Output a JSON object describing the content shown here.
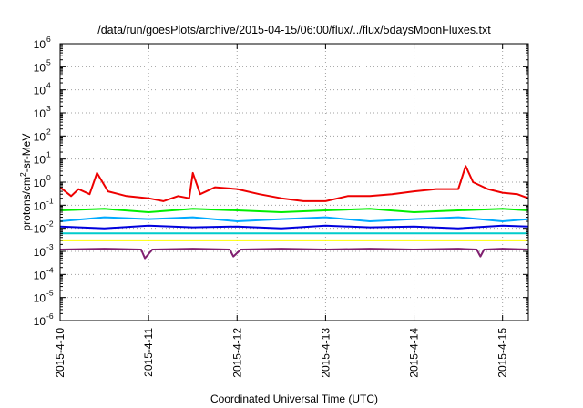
{
  "chart_data": {
    "type": "line",
    "title": "/data/run/goesPlots/archive/2015-04-15/06:00/flux/../flux/5daysMoonFluxes.txt",
    "xlabel": "Coordinated Universal Time (UTC)",
    "ylabel": "protons/cm2-sr-MeV",
    "ylabel_parts": {
      "pre": "protons/cm",
      "sup": "2",
      "post": "-sr-MeV"
    },
    "yscale": "log",
    "ylim": [
      1e-06,
      1000000.0
    ],
    "xlim": [
      "2015-04-10 00:00",
      "2015-04-15 07:00"
    ],
    "grid": true,
    "x_ticks": [
      "2015-4-10",
      "2015-4-11",
      "2015-4-12",
      "2015-4-13",
      "2015-4-14",
      "2015-4-15"
    ],
    "y_ticks": [
      {
        "exp": -6,
        "base": "10",
        "sup": "-6"
      },
      {
        "exp": -5,
        "base": "10",
        "sup": "-5"
      },
      {
        "exp": -4,
        "base": "10",
        "sup": "-4"
      },
      {
        "exp": -3,
        "base": "10",
        "sup": "-3"
      },
      {
        "exp": -2,
        "base": "10",
        "sup": "-2"
      },
      {
        "exp": -1,
        "base": "10",
        "sup": "-1"
      },
      {
        "exp": 0,
        "base": "10",
        "sup": "0"
      },
      {
        "exp": 1,
        "base": "10",
        "sup": "1"
      },
      {
        "exp": 2,
        "base": "10",
        "sup": "2"
      },
      {
        "exp": 3,
        "base": "10",
        "sup": "3"
      },
      {
        "exp": 4,
        "base": "10",
        "sup": "4"
      },
      {
        "exp": 5,
        "base": "10",
        "sup": "5"
      },
      {
        "exp": 6,
        "base": "10",
        "sup": "6"
      }
    ],
    "series": [
      {
        "color": "#ee0000",
        "x": [
          "2015-04-10 00:00",
          "2015-04-10 03:00",
          "2015-04-10 05:00",
          "2015-04-10 08:00",
          "2015-04-10 10:00",
          "2015-04-10 13:00",
          "2015-04-10 18:00",
          "2015-04-11 00:00",
          "2015-04-11 04:00",
          "2015-04-11 08:00",
          "2015-04-11 11:00",
          "2015-04-11 12:00",
          "2015-04-11 14:00",
          "2015-04-11 18:00",
          "2015-04-12 00:00",
          "2015-04-12 06:00",
          "2015-04-12 12:00",
          "2015-04-12 18:00",
          "2015-04-13 00:00",
          "2015-04-13 06:00",
          "2015-04-13 12:00",
          "2015-04-13 18:00",
          "2015-04-14 00:00",
          "2015-04-14 06:00",
          "2015-04-14 12:00",
          "2015-04-14 14:00",
          "2015-04-14 16:00",
          "2015-04-14 20:00",
          "2015-04-15 00:00",
          "2015-04-15 04:00",
          "2015-04-15 07:00"
        ],
        "y": [
          0.6,
          0.25,
          0.5,
          0.3,
          2.5,
          0.4,
          0.25,
          0.2,
          0.15,
          0.25,
          0.2,
          2.5,
          0.3,
          0.6,
          0.5,
          0.3,
          0.2,
          0.15,
          0.15,
          0.25,
          0.25,
          0.3,
          0.4,
          0.5,
          0.5,
          5.0,
          1.0,
          0.5,
          0.35,
          0.3,
          0.2
        ]
      },
      {
        "color": "#00ee00",
        "x": [
          "2015-04-10 00:00",
          "2015-04-10 12:00",
          "2015-04-11 00:00",
          "2015-04-11 12:00",
          "2015-04-12 00:00",
          "2015-04-12 12:00",
          "2015-04-13 00:00",
          "2015-04-13 12:00",
          "2015-04-14 00:00",
          "2015-04-14 12:00",
          "2015-04-15 00:00",
          "2015-04-15 07:00"
        ],
        "y": [
          0.06,
          0.07,
          0.05,
          0.07,
          0.06,
          0.05,
          0.06,
          0.07,
          0.05,
          0.06,
          0.07,
          0.06
        ]
      },
      {
        "color": "#00aaff",
        "x": [
          "2015-04-10 00:00",
          "2015-04-10 12:00",
          "2015-04-11 00:00",
          "2015-04-11 12:00",
          "2015-04-12 00:00",
          "2015-04-12 12:00",
          "2015-04-13 00:00",
          "2015-04-13 12:00",
          "2015-04-14 00:00",
          "2015-04-14 12:00",
          "2015-04-15 00:00",
          "2015-04-15 07:00"
        ],
        "y": [
          0.02,
          0.03,
          0.025,
          0.03,
          0.02,
          0.025,
          0.03,
          0.02,
          0.025,
          0.03,
          0.02,
          0.025
        ]
      },
      {
        "color": "#0000dd",
        "x": [
          "2015-04-10 00:00",
          "2015-04-10 12:00",
          "2015-04-11 00:00",
          "2015-04-11 12:00",
          "2015-04-12 00:00",
          "2015-04-12 12:00",
          "2015-04-13 00:00",
          "2015-04-13 12:00",
          "2015-04-14 00:00",
          "2015-04-14 12:00",
          "2015-04-15 00:00",
          "2015-04-15 07:00"
        ],
        "y": [
          0.012,
          0.01,
          0.013,
          0.011,
          0.012,
          0.01,
          0.013,
          0.011,
          0.012,
          0.01,
          0.013,
          0.012
        ]
      },
      {
        "color": "#00cccc",
        "x": [
          "2015-04-10 00:00",
          "2015-04-11 00:00",
          "2015-04-12 00:00",
          "2015-04-13 00:00",
          "2015-04-14 00:00",
          "2015-04-15 00:00",
          "2015-04-15 07:00"
        ],
        "y": [
          0.006,
          0.006,
          0.006,
          0.006,
          0.006,
          0.006,
          0.006
        ]
      },
      {
        "color": "#ffff00",
        "x": [
          "2015-04-10 00:00",
          "2015-04-11 00:00",
          "2015-04-12 00:00",
          "2015-04-13 00:00",
          "2015-04-14 00:00",
          "2015-04-15 00:00",
          "2015-04-15 07:00"
        ],
        "y": [
          0.003,
          0.003,
          0.003,
          0.003,
          0.003,
          0.003,
          0.003
        ]
      },
      {
        "color": "#802070",
        "x": [
          "2015-04-10 00:00",
          "2015-04-10 12:00",
          "2015-04-10 22:00",
          "2015-04-10 23:00",
          "2015-04-11 01:00",
          "2015-04-11 12:00",
          "2015-04-11 22:00",
          "2015-04-11 23:00",
          "2015-04-12 01:00",
          "2015-04-12 12:00",
          "2015-04-13 00:00",
          "2015-04-13 12:00",
          "2015-04-14 00:00",
          "2015-04-14 12:00",
          "2015-04-14 17:00",
          "2015-04-14 18:00",
          "2015-04-14 19:00",
          "2015-04-15 00:00",
          "2015-04-15 07:00"
        ],
        "y": [
          0.0012,
          0.0013,
          0.0012,
          0.0005,
          0.0012,
          0.0013,
          0.0012,
          0.0006,
          0.0012,
          0.0013,
          0.0012,
          0.0013,
          0.0012,
          0.0013,
          0.0012,
          0.0006,
          0.0012,
          0.0013,
          0.0012
        ]
      }
    ]
  }
}
